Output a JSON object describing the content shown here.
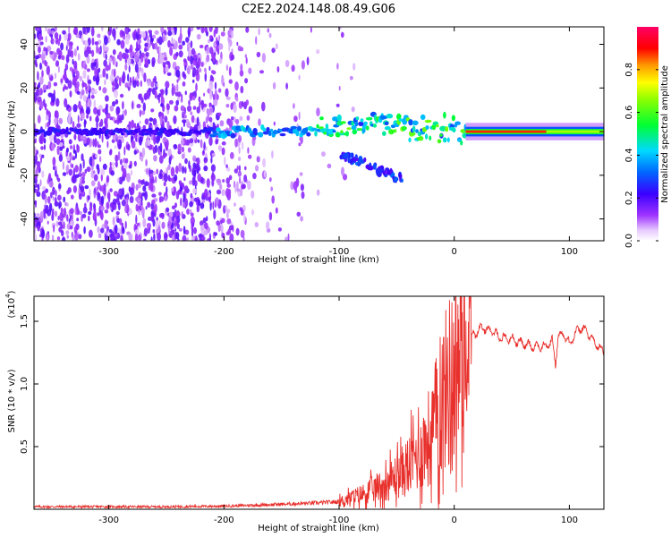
{
  "figure_title": "C2E2.2024.148.08.49.G06",
  "chart_data": [
    {
      "type": "heatmap",
      "title": "",
      "xlabel": "Height of straight line (km)",
      "ylabel": "Frequency (Hz)",
      "xlim": [
        -365,
        130
      ],
      "ylim": [
        -50,
        48
      ],
      "x_ticks": [
        -300,
        -200,
        -100,
        0,
        100
      ],
      "x_tick_labels": [
        "-300",
        "-200",
        "-100",
        "0",
        "100"
      ],
      "y_ticks": [
        -40,
        -20,
        0,
        20,
        40
      ],
      "y_tick_labels": [
        "-40",
        "-20",
        "0",
        "20",
        "40"
      ],
      "colorbar": {
        "label": "Normalized spectral amplitude",
        "range": [
          0,
          1
        ],
        "ticks": [
          0.0,
          0.2,
          0.4,
          0.6,
          0.8
        ],
        "tick_labels": [
          "0.0",
          "0.2",
          "0.4",
          "0.6",
          "0.8"
        ],
        "colormap": "rainbow (white-violet-blue-cyan-green-yellow-red-magenta)"
      },
      "features": {
        "noise_region_x": [
          -365,
          -200
        ],
        "central_band_frequency": 0,
        "strong_line_x": [
          10,
          130
        ],
        "strong_line_amplitude": 0.85,
        "lower_branch": {
          "x": [
            -100,
            -45
          ],
          "frequency": [
            -10,
            -22
          ]
        }
      }
    },
    {
      "type": "line",
      "title": "",
      "xlabel": "Height of straight line (km)",
      "ylabel": "SNR (10 * v/v)",
      "y_scale_label": "(x10",
      "y_scale_exponent": "4",
      "xlim": [
        -365,
        130
      ],
      "ylim": [
        0,
        1.7
      ],
      "x_ticks": [
        -300,
        -200,
        -100,
        0,
        100
      ],
      "x_tick_labels": [
        "-300",
        "-200",
        "-100",
        "0",
        "100"
      ],
      "y_ticks": [
        0.5,
        1.0,
        1.5
      ],
      "y_tick_labels": [
        "0.5",
        "1.0",
        "1.5"
      ],
      "line_color": "#e8302c",
      "series": [
        {
          "name": "SNR",
          "x": [
            -365,
            -300,
            -250,
            -200,
            -150,
            -120,
            -100,
            -80,
            -60,
            -45,
            -40,
            -30,
            -20,
            -15,
            -10,
            -5,
            0,
            5,
            10,
            15,
            20,
            25,
            30,
            35,
            40,
            50,
            60,
            70,
            80,
            85,
            88,
            90,
            95,
            100,
            105,
            110,
            115,
            120,
            125,
            130
          ],
          "values": [
            0.02,
            0.02,
            0.02,
            0.025,
            0.04,
            0.05,
            0.06,
            0.12,
            0.2,
            0.3,
            0.35,
            0.45,
            0.6,
            0.75,
            0.9,
            1.0,
            1.1,
            1.2,
            1.3,
            1.38,
            1.42,
            1.45,
            1.43,
            1.41,
            1.37,
            1.36,
            1.32,
            1.3,
            1.3,
            1.35,
            1.15,
            1.38,
            1.4,
            1.32,
            1.4,
            1.45,
            1.42,
            1.35,
            1.3,
            1.25
          ]
        }
      ]
    }
  ]
}
